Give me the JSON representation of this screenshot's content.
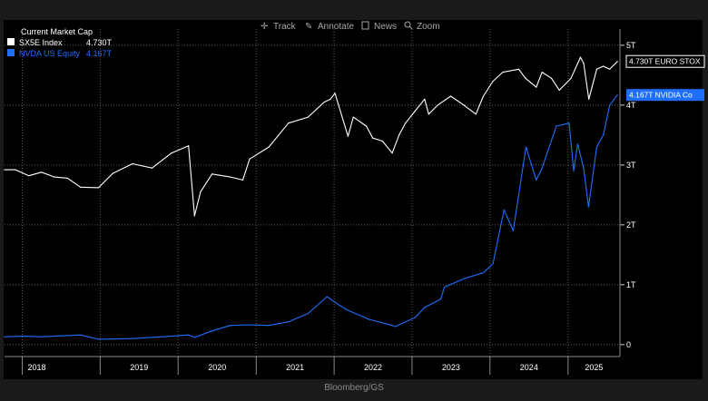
{
  "toolbar": {
    "items": [
      {
        "icon": "crosshair-icon",
        "label": "Track"
      },
      {
        "icon": "pencil-icon",
        "label": "Annotate"
      },
      {
        "icon": "news-icon",
        "label": "News"
      },
      {
        "icon": "magnifier-icon",
        "label": "Zoom"
      }
    ]
  },
  "legend": {
    "title": "Current Market Cap",
    "entries": [
      {
        "label": "SX5E Index",
        "value": "4.730T",
        "color": "#ffffff"
      },
      {
        "label": "NVDA US Equity",
        "value": "4.167T",
        "color": "#1f6fff"
      }
    ]
  },
  "source": "Bloomberg/GS",
  "colors": {
    "background": "#000000",
    "frame": "#1a1a1a",
    "series1": "#ffffff",
    "series2": "#1f6fff",
    "grid": "#5a5a5a",
    "axis_text": "#ffffff",
    "toolbar_text": "#a8a8a8",
    "source_text": "#8a8a8a"
  },
  "chart_data": {
    "type": "line",
    "title": "Current Market Cap",
    "xlabel": "",
    "ylabel": "",
    "ylim": [
      -0.2,
      5.15
    ],
    "y_ticks": [
      {
        "value": 0,
        "label": "0"
      },
      {
        "value": 1,
        "label": "1T"
      },
      {
        "value": 2,
        "label": "2T"
      },
      {
        "value": 3,
        "label": "3T"
      },
      {
        "value": 4,
        "label": "4T"
      },
      {
        "value": 5,
        "label": "5T"
      }
    ],
    "xlim": [
      "2017-10-10",
      "2025-09-01"
    ],
    "x_year_labels": [
      "2018",
      "2019",
      "2020",
      "2021",
      "2022",
      "2023",
      "2024",
      "2025"
    ],
    "grid": true,
    "legend_position": "top-left",
    "series": [
      {
        "name": "SX5E Index",
        "last_label": "4.730T EURO STOX",
        "x": [
          "2017-10-10",
          "2017-12-01",
          "2018-02-01",
          "2018-04-01",
          "2018-06-01",
          "2018-08-01",
          "2018-10-01",
          "2018-12-24",
          "2019-03-01",
          "2019-06-01",
          "2019-09-01",
          "2019-12-01",
          "2020-02-19",
          "2020-03-18",
          "2020-04-15",
          "2020-06-08",
          "2020-09-01",
          "2020-10-30",
          "2020-12-01",
          "2021-03-01",
          "2021-06-01",
          "2021-09-01",
          "2021-11-15",
          "2021-12-15",
          "2022-01-05",
          "2022-03-07",
          "2022-04-01",
          "2022-06-01",
          "2022-07-01",
          "2022-08-15",
          "2022-09-30",
          "2022-11-01",
          "2022-12-01",
          "2023-01-15",
          "2023-03-01",
          "2023-03-20",
          "2023-05-01",
          "2023-07-01",
          "2023-09-01",
          "2023-10-27",
          "2023-12-01",
          "2024-01-15",
          "2024-03-01",
          "2024-05-15",
          "2024-06-15",
          "2024-08-05",
          "2024-09-01",
          "2024-10-15",
          "2024-11-21",
          "2025-01-15",
          "2025-02-28",
          "2025-03-15",
          "2025-04-08",
          "2025-05-15",
          "2025-06-15",
          "2025-07-15",
          "2025-08-20"
        ],
        "values": [
          2.92,
          2.92,
          2.82,
          2.88,
          2.8,
          2.78,
          2.63,
          2.62,
          2.86,
          3.02,
          2.95,
          3.2,
          3.32,
          2.15,
          2.55,
          2.85,
          2.8,
          2.75,
          3.1,
          3.3,
          3.7,
          3.8,
          4.05,
          4.1,
          4.2,
          3.48,
          3.8,
          3.65,
          3.45,
          3.4,
          3.2,
          3.5,
          3.7,
          3.9,
          4.1,
          3.85,
          4.0,
          4.15,
          4.0,
          3.85,
          4.15,
          4.4,
          4.55,
          4.6,
          4.45,
          4.3,
          4.55,
          4.45,
          4.25,
          4.45,
          4.8,
          4.7,
          4.1,
          4.6,
          4.65,
          4.6,
          4.73
        ]
      },
      {
        "name": "NVDA US Equity",
        "last_label": "4.167T NVIDIA Co",
        "x": [
          "2017-10-10",
          "2018-01-15",
          "2018-04-01",
          "2018-10-01",
          "2018-12-24",
          "2019-06-01",
          "2019-12-01",
          "2020-02-19",
          "2020-03-18",
          "2020-06-01",
          "2020-09-01",
          "2020-12-01",
          "2021-03-01",
          "2021-06-01",
          "2021-09-01",
          "2021-11-29",
          "2022-01-15",
          "2022-03-01",
          "2022-06-15",
          "2022-09-30",
          "2022-10-14",
          "2022-12-01",
          "2023-01-15",
          "2023-03-01",
          "2023-05-15",
          "2023-06-01",
          "2023-09-01",
          "2023-12-01",
          "2024-01-15",
          "2024-03-07",
          "2024-04-19",
          "2024-06-18",
          "2024-08-05",
          "2024-09-01",
          "2024-11-07",
          "2025-01-06",
          "2025-01-27",
          "2025-02-15",
          "2025-03-15",
          "2025-04-07",
          "2025-05-15",
          "2025-06-15",
          "2025-07-15",
          "2025-08-20"
        ],
        "values": [
          0.13,
          0.14,
          0.13,
          0.16,
          0.09,
          0.1,
          0.14,
          0.16,
          0.12,
          0.22,
          0.32,
          0.33,
          0.32,
          0.38,
          0.52,
          0.8,
          0.68,
          0.58,
          0.42,
          0.32,
          0.3,
          0.38,
          0.45,
          0.62,
          0.76,
          0.96,
          1.1,
          1.2,
          1.35,
          2.25,
          1.9,
          3.3,
          2.75,
          2.95,
          3.65,
          3.7,
          2.9,
          3.35,
          2.95,
          2.3,
          3.3,
          3.5,
          4.0,
          4.17
        ]
      }
    ]
  }
}
